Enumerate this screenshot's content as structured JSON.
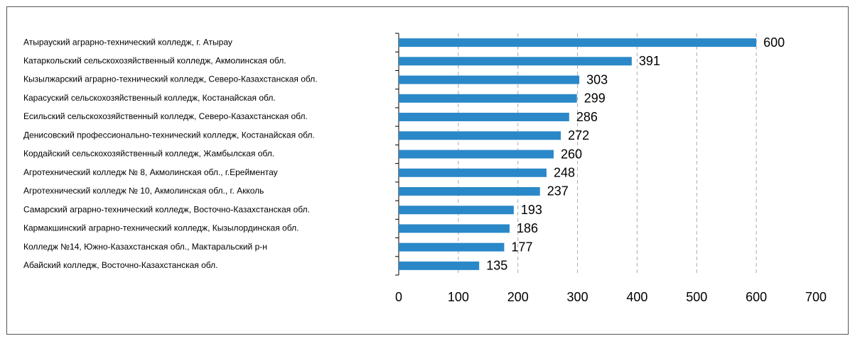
{
  "chart_data": {
    "type": "bar",
    "orientation": "horizontal",
    "categories": [
      "Атырауский аграрно-технический колледж, г. Атырау",
      "Катаркольский сельскохозяйственный колледж, Акмолинская обл.",
      "Кызылжарский аграрно-технический колледж, Северо-Казахстанская обл.",
      "Карасуский сельскохозяйственный колледж, Костанайская обл.",
      "Есильский сельскохозяйственный колледж, Северо-Казахстанская обл.",
      "Денисовский профессионально-технический колледж, Костанайская обл.",
      "Кордайский сельскохозяйственный колледж, Жамбылская обл.",
      "Агротехнический колледж № 8, Акмолинская обл., г.Ерейментау",
      "Агротехнический колледж № 10, Акмолинская обл., г. Акколь",
      "Самарский аграрно-технический колледж, Восточно-Казахстанская обл.",
      "Кармакшинский аграрно-технический колледж, Кызылординская обл.",
      "Колледж №14, Южно-Казахстанская обл., Мактаральский р-н",
      "Абайский колледж, Восточно-Казахстанская обл."
    ],
    "values": [
      600,
      391,
      303,
      299,
      286,
      272,
      260,
      248,
      237,
      193,
      186,
      177,
      135
    ],
    "color": "#2a88c8",
    "xlim": [
      0,
      700
    ],
    "xticks": [
      0,
      100,
      200,
      300,
      400,
      500,
      600,
      700
    ],
    "grid": true
  }
}
